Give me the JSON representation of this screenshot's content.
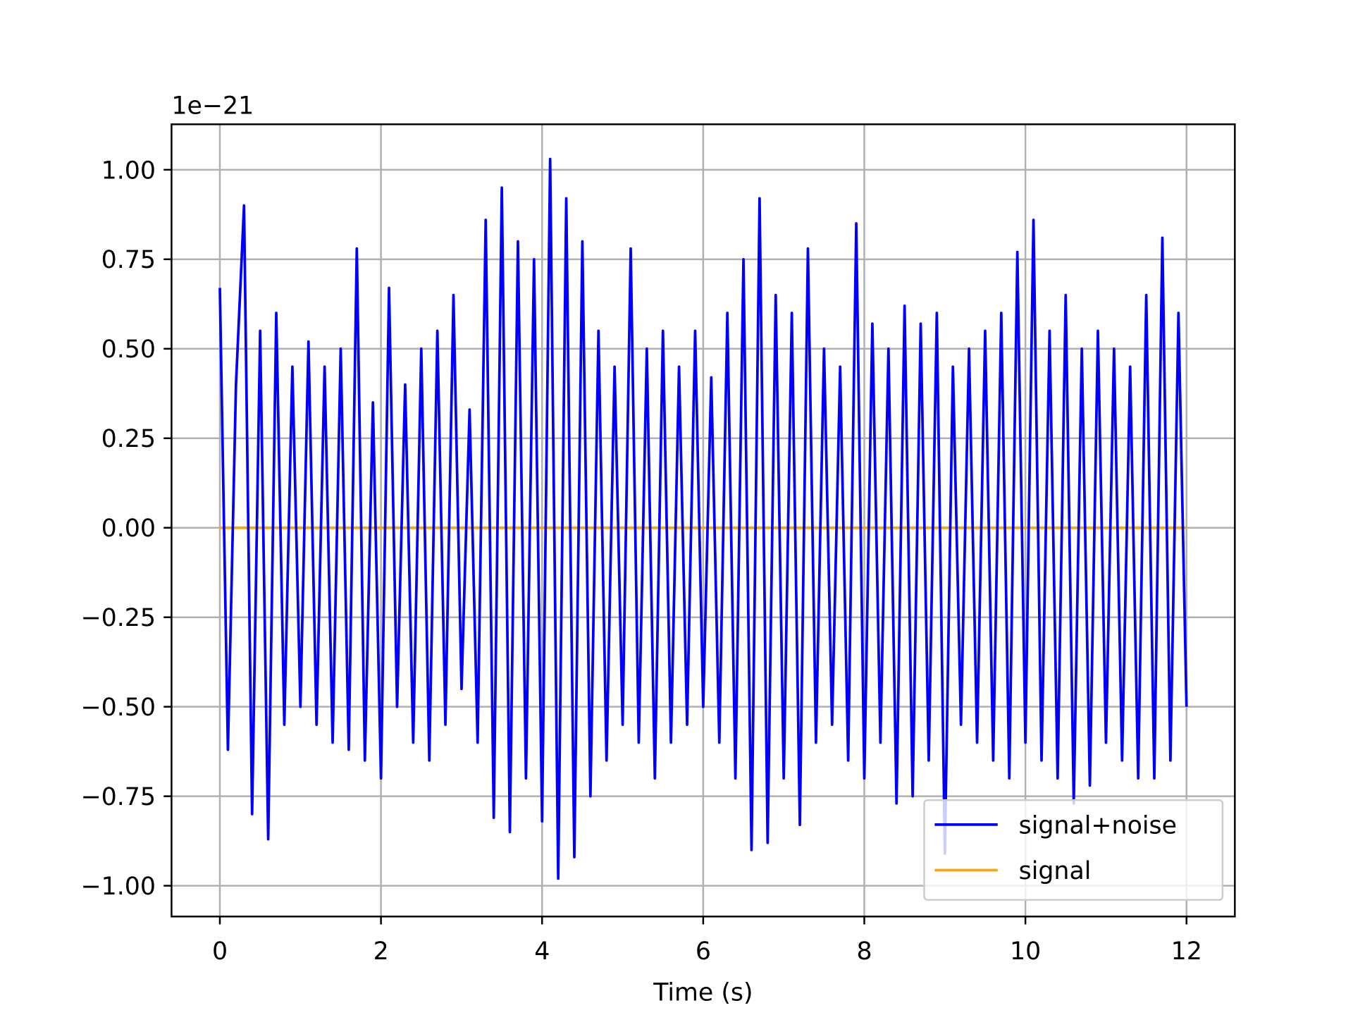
{
  "chart_data": {
    "type": "line",
    "axis_offset": "1e−21",
    "xlabel": "Time (s)",
    "x": [
      0.0,
      0.1,
      0.2,
      0.3,
      0.4,
      0.5,
      0.6,
      0.7,
      0.8,
      0.9,
      1.0,
      1.1,
      1.2,
      1.3,
      1.4,
      1.5,
      1.6,
      1.7,
      1.8,
      1.9,
      2.0,
      2.1,
      2.2,
      2.3,
      2.4,
      2.5,
      2.6,
      2.7,
      2.8,
      2.9,
      3.0,
      3.1,
      3.2,
      3.3,
      3.4,
      3.5,
      3.6,
      3.7,
      3.8,
      3.9,
      4.0,
      4.1,
      4.2,
      4.3,
      4.4,
      4.5,
      4.6,
      4.7,
      4.8,
      4.9,
      5.0,
      5.1,
      5.2,
      5.3,
      5.4,
      5.5,
      5.6,
      5.7,
      5.8,
      5.9,
      6.0,
      6.1,
      6.2,
      6.3,
      6.4,
      6.5,
      6.6,
      6.7,
      6.8,
      6.9,
      7.0,
      7.1,
      7.2,
      7.3,
      7.4,
      7.5,
      7.6,
      7.7,
      7.8,
      7.9,
      8.0,
      8.1,
      8.2,
      8.3,
      8.4,
      8.5,
      8.6,
      8.7,
      8.8,
      8.9,
      9.0,
      9.1,
      9.2,
      9.3,
      9.4,
      9.5,
      9.6,
      9.7,
      9.8,
      9.9,
      10.0,
      10.1,
      10.2,
      10.3,
      10.4,
      10.5,
      10.6,
      10.7,
      10.8,
      10.9,
      11.0,
      11.1,
      11.2,
      11.3,
      11.4,
      11.5,
      11.6,
      11.7,
      11.8,
      11.9,
      12.0
    ],
    "series": [
      {
        "name": "signal+noise",
        "color": "#0000ff",
        "values": [
          0.67,
          -0.62,
          0.4,
          0.9,
          -0.8,
          0.55,
          -0.87,
          0.6,
          -0.55,
          0.45,
          -0.5,
          0.52,
          -0.55,
          0.45,
          -0.6,
          0.5,
          -0.62,
          0.78,
          -0.65,
          0.35,
          -0.7,
          0.67,
          -0.5,
          0.4,
          -0.6,
          0.5,
          -0.65,
          0.55,
          -0.55,
          0.65,
          -0.45,
          0.33,
          -0.6,
          0.86,
          -0.81,
          0.95,
          -0.85,
          0.8,
          -0.7,
          0.75,
          -0.82,
          1.03,
          -0.98,
          0.92,
          -0.92,
          0.8,
          -0.75,
          0.55,
          -0.65,
          0.45,
          -0.55,
          0.78,
          -0.6,
          0.5,
          -0.7,
          0.55,
          -0.6,
          0.45,
          -0.55,
          0.55,
          -0.5,
          0.42,
          -0.6,
          0.6,
          -0.7,
          0.75,
          -0.9,
          0.92,
          -0.88,
          0.65,
          -0.7,
          0.6,
          -0.83,
          0.78,
          -0.6,
          0.5,
          -0.55,
          0.45,
          -0.65,
          0.85,
          -0.7,
          0.57,
          -0.6,
          0.5,
          -0.77,
          0.62,
          -0.75,
          0.57,
          -0.65,
          0.6,
          -0.91,
          0.45,
          -0.55,
          0.5,
          -0.6,
          0.55,
          -0.65,
          0.6,
          -0.7,
          0.77,
          -0.6,
          0.86,
          -0.65,
          0.55,
          -0.7,
          0.65,
          -0.77,
          0.5,
          -0.72,
          0.55,
          -0.6,
          0.5,
          -0.65,
          0.45,
          -0.7,
          0.65,
          -0.7,
          0.81,
          -0.65,
          0.6,
          -0.5
        ]
      },
      {
        "name": "signal",
        "color": "#ffa500",
        "values": [
          0,
          0,
          0,
          0,
          0,
          0,
          0,
          0,
          0,
          0,
          0,
          0,
          0,
          0,
          0,
          0,
          0,
          0,
          0,
          0,
          0,
          0,
          0,
          0,
          0,
          0,
          0,
          0,
          0,
          0,
          0,
          0,
          0,
          0,
          0,
          0,
          0,
          0,
          0,
          0,
          0,
          0,
          0,
          0,
          0,
          0,
          0,
          0,
          0,
          0,
          0,
          0,
          0,
          0,
          0,
          0,
          0,
          0,
          0,
          0,
          0,
          0,
          0,
          0,
          0,
          0,
          0,
          0,
          0,
          0,
          0,
          0,
          0,
          0,
          0,
          0,
          0,
          0,
          0,
          0,
          0,
          0,
          0,
          0,
          0,
          0,
          0,
          0,
          0,
          0,
          0,
          0,
          0,
          0,
          0,
          0,
          0,
          0,
          0,
          0,
          0,
          0,
          0,
          0,
          0,
          0,
          0,
          0,
          0,
          0,
          0,
          0,
          0,
          0,
          0,
          0,
          0,
          0,
          0,
          0,
          0
        ]
      }
    ],
    "xlim": [
      -0.6,
      12.6
    ],
    "ylim": [
      -1.086,
      1.127
    ],
    "xticks": [
      0,
      2,
      4,
      6,
      8,
      10,
      12
    ],
    "yticks": [
      {
        "value": -1,
        "label": "−1.00"
      },
      {
        "value": -0.75,
        "label": "−0.75"
      },
      {
        "value": -0.5,
        "label": "−0.50"
      },
      {
        "value": -0.25,
        "label": "−0.25"
      },
      {
        "value": 0,
        "label": "0.00"
      },
      {
        "value": 0.25,
        "label": "0.25"
      },
      {
        "value": 0.5,
        "label": "0.50"
      },
      {
        "value": 0.75,
        "label": "0.75"
      },
      {
        "value": 1,
        "label": "1.00"
      }
    ],
    "grid": true,
    "legend": "lower right"
  }
}
